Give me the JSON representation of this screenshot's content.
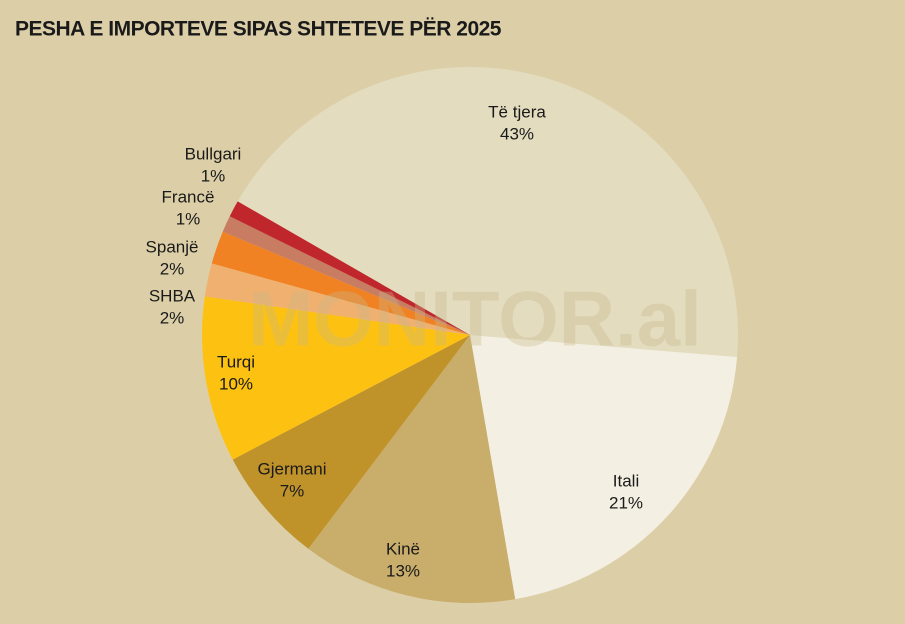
{
  "chart_data": {
    "type": "pie",
    "title": "PESHA E IMPORTEVE SIPAS SHTETEVE PËR 2025",
    "watermark": "MONITOR.al",
    "categories": [
      "Të tjera",
      "Itali",
      "Kinë",
      "Gjermani",
      "Turqi",
      "SHBA",
      "Spanjë",
      "Francë",
      "Bullgari"
    ],
    "values": [
      43,
      21,
      13,
      7,
      10,
      2,
      2,
      1,
      1
    ],
    "value_labels": [
      "43%",
      "21%",
      "13%",
      "7%",
      "10%",
      "2%",
      "2%",
      "1%",
      "1%"
    ],
    "colors": [
      "#e3dcbf",
      "#f3efe2",
      "#c9ad6a",
      "#c0922a",
      "#fdc211",
      "#f0b070",
      "#f08224",
      "#c87d62",
      "#c0272d"
    ]
  }
}
